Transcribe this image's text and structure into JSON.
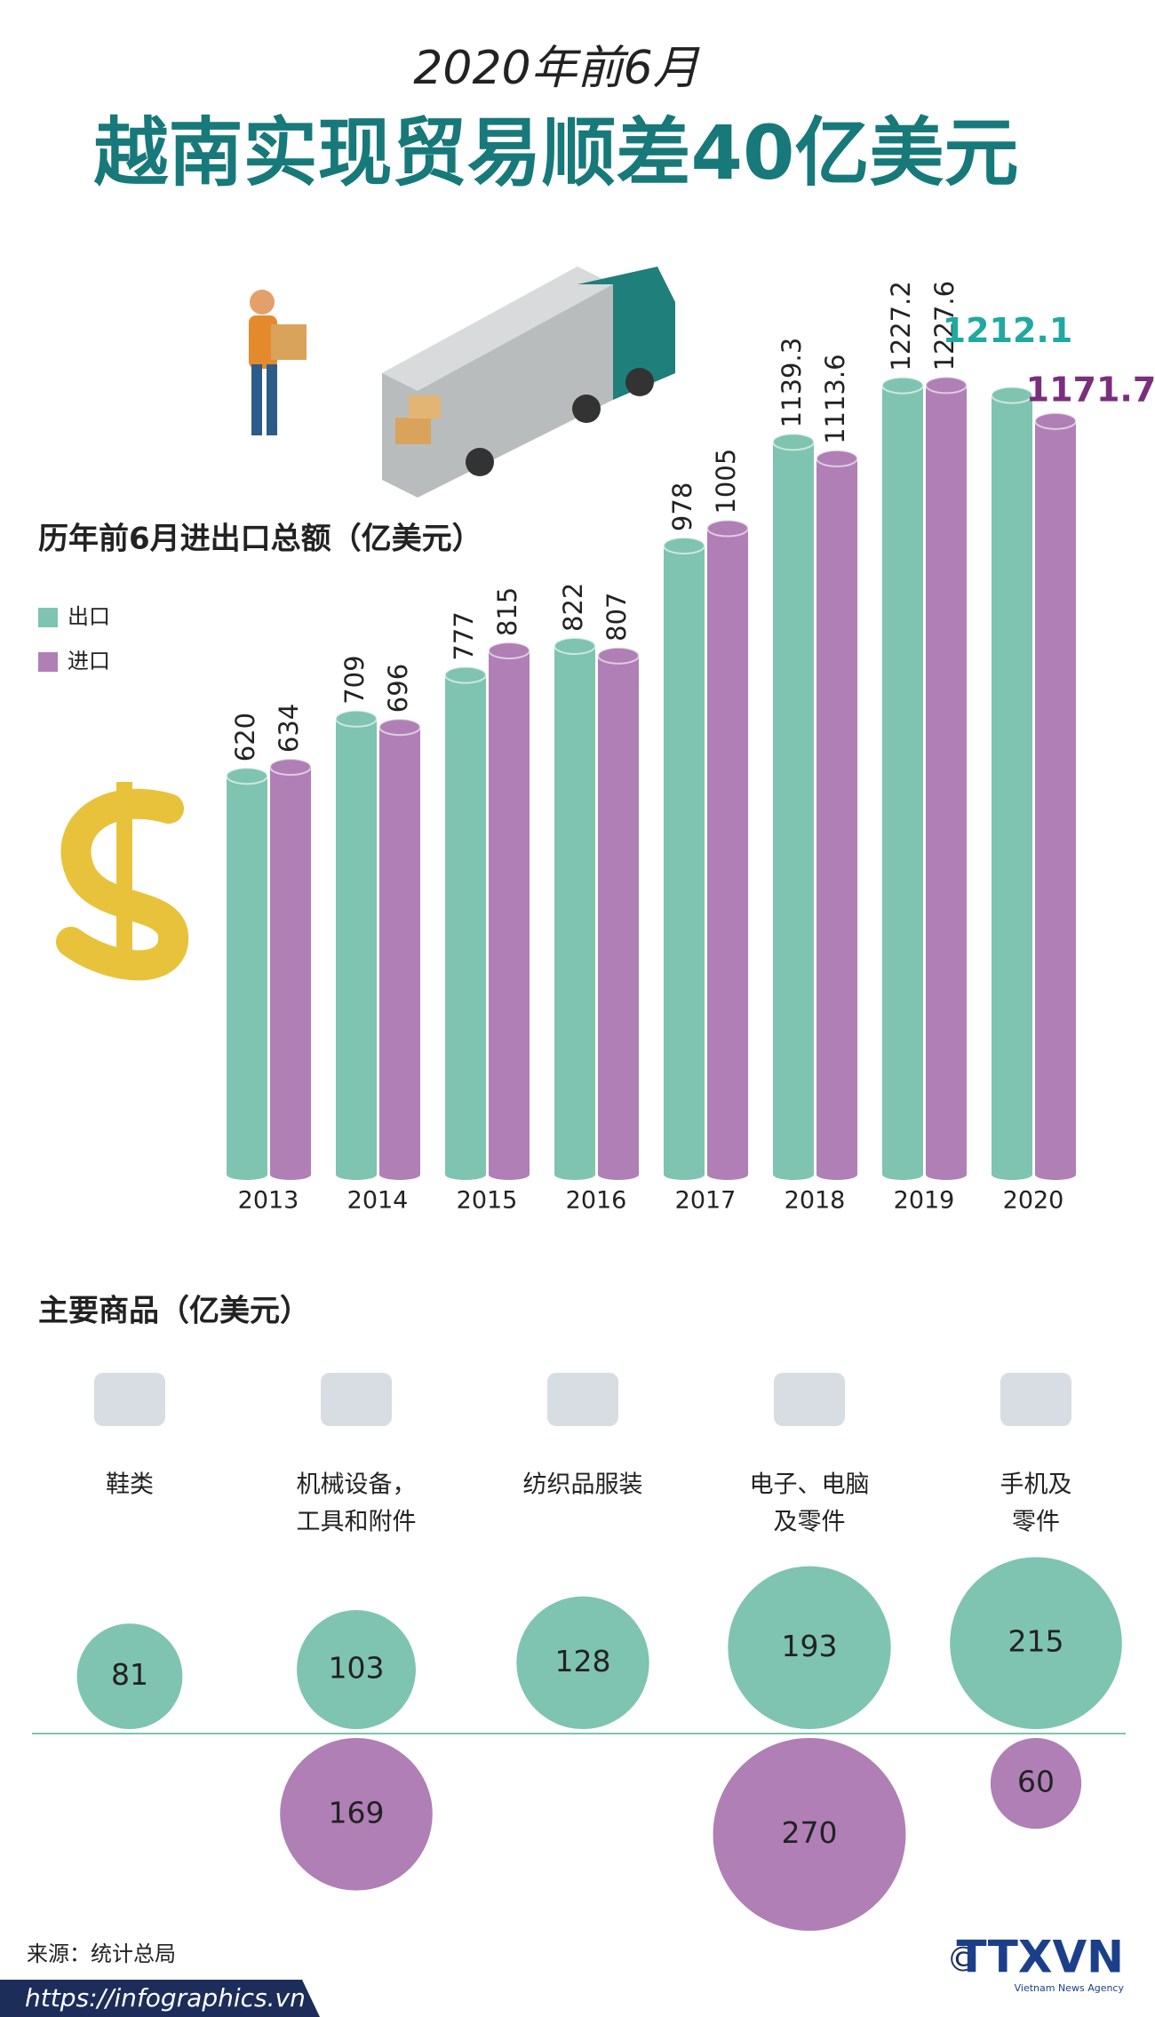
{
  "header": {
    "subtitle": "2020年前6月",
    "title": "越南实现贸易顺差40亿美元"
  },
  "chart_data": [
    {
      "type": "bar",
      "title": "历年前6月进出口总额（亿美元）",
      "categories": [
        "2013",
        "2014",
        "2015",
        "2016",
        "2017",
        "2018",
        "2019",
        "2020"
      ],
      "series": [
        {
          "name": "出口",
          "color": "#7fc4b0",
          "highlight_color": "#1fa9a0",
          "values": [
            620,
            709,
            777,
            822,
            978,
            1139.3,
            1227.2,
            1212.1
          ]
        },
        {
          "name": "进口",
          "color": "#b07fb6",
          "highlight_color": "#7a2f7d",
          "values": [
            634,
            696,
            815,
            807,
            1005,
            1113.6,
            1227.6,
            1171.7
          ]
        }
      ],
      "ylim": [
        0,
        1300
      ]
    },
    {
      "type": "bubble",
      "title": "主要商品（亿美元）",
      "categories": [
        [
          "鞋类"
        ],
        [
          "机械设备，",
          "工具和附件"
        ],
        [
          "纺织品服装"
        ],
        [
          "电子、电脑",
          "及零件"
        ],
        [
          "手机及",
          "零件"
        ]
      ],
      "series": [
        {
          "color": "#7fc4b0",
          "values": [
            81,
            103,
            128,
            193,
            215
          ]
        },
        {
          "color": "#b07fb6",
          "values": [
            null,
            169,
            null,
            270,
            60
          ]
        }
      ]
    }
  ],
  "footer": {
    "source": "来源：统计总局",
    "url": "https://infographics.vn",
    "copyright": "©",
    "logo": "TTXVN",
    "logo_sub": "Vietnam News Agency"
  }
}
